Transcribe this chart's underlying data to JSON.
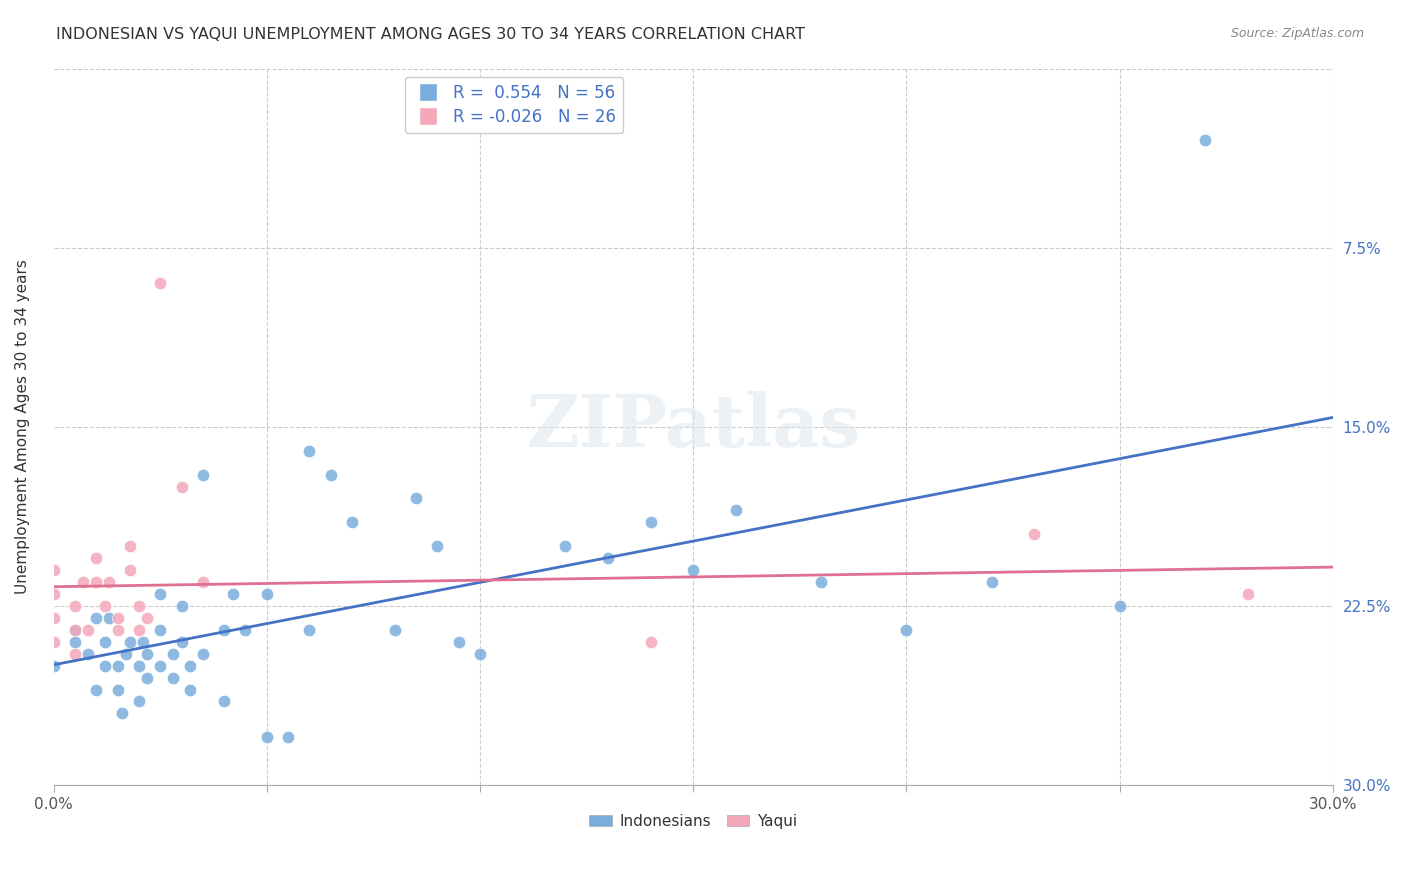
{
  "title": "INDONESIAN VS YAQUI UNEMPLOYMENT AMONG AGES 30 TO 34 YEARS CORRELATION CHART",
  "source": "Source: ZipAtlas.com",
  "xlabel": "",
  "ylabel": "Unemployment Among Ages 30 to 34 years",
  "xlim": [
    0.0,
    0.3
  ],
  "ylim": [
    0.0,
    0.3
  ],
  "xticks": [
    0.0,
    0.05,
    0.1,
    0.15,
    0.2,
    0.25,
    0.3
  ],
  "yticks": [
    0.0,
    0.075,
    0.15,
    0.225,
    0.3
  ],
  "xticklabels": [
    "0.0%",
    "",
    "",
    "",
    "",
    "",
    "30.0%"
  ],
  "yticklabels_right": [
    "30.0%",
    "22.5%",
    "15.0%",
    "7.5%",
    ""
  ],
  "legend_labels": [
    "Indonesians",
    "Yaqui"
  ],
  "R_indonesian": 0.554,
  "N_indonesian": 56,
  "R_yaqui": -0.026,
  "N_yaqui": 26,
  "color_indonesian": "#7aaddb",
  "color_yaqui": "#f4a7b9",
  "line_color_indonesian": "#4472c4",
  "line_color_yaqui": "#e07090",
  "watermark": "ZIPatlas",
  "indonesian_x": [
    0.0,
    0.005,
    0.005,
    0.008,
    0.01,
    0.01,
    0.012,
    0.012,
    0.013,
    0.015,
    0.015,
    0.016,
    0.017,
    0.018,
    0.02,
    0.02,
    0.021,
    0.022,
    0.022,
    0.025,
    0.025,
    0.025,
    0.028,
    0.028,
    0.03,
    0.03,
    0.032,
    0.032,
    0.035,
    0.035,
    0.04,
    0.04,
    0.042,
    0.045,
    0.05,
    0.05,
    0.055,
    0.06,
    0.06,
    0.065,
    0.07,
    0.08,
    0.085,
    0.09,
    0.095,
    0.1,
    0.12,
    0.13,
    0.14,
    0.15,
    0.16,
    0.18,
    0.2,
    0.22,
    0.25,
    0.27
  ],
  "indonesian_y": [
    0.05,
    0.06,
    0.065,
    0.055,
    0.04,
    0.07,
    0.05,
    0.06,
    0.07,
    0.04,
    0.05,
    0.03,
    0.055,
    0.06,
    0.035,
    0.05,
    0.06,
    0.045,
    0.055,
    0.05,
    0.065,
    0.08,
    0.045,
    0.055,
    0.06,
    0.075,
    0.04,
    0.05,
    0.055,
    0.13,
    0.035,
    0.065,
    0.08,
    0.065,
    0.02,
    0.08,
    0.02,
    0.065,
    0.14,
    0.13,
    0.11,
    0.065,
    0.12,
    0.1,
    0.06,
    0.055,
    0.1,
    0.095,
    0.11,
    0.09,
    0.115,
    0.085,
    0.065,
    0.085,
    0.075,
    0.27
  ],
  "yaqui_x": [
    0.0,
    0.0,
    0.0,
    0.0,
    0.005,
    0.005,
    0.005,
    0.007,
    0.008,
    0.01,
    0.01,
    0.012,
    0.013,
    0.015,
    0.015,
    0.018,
    0.018,
    0.02,
    0.02,
    0.022,
    0.025,
    0.03,
    0.035,
    0.14,
    0.23,
    0.28
  ],
  "yaqui_y": [
    0.06,
    0.07,
    0.08,
    0.09,
    0.055,
    0.065,
    0.075,
    0.085,
    0.065,
    0.085,
    0.095,
    0.075,
    0.085,
    0.065,
    0.07,
    0.09,
    0.1,
    0.065,
    0.075,
    0.07,
    0.21,
    0.125,
    0.085,
    0.06,
    0.105,
    0.08
  ]
}
